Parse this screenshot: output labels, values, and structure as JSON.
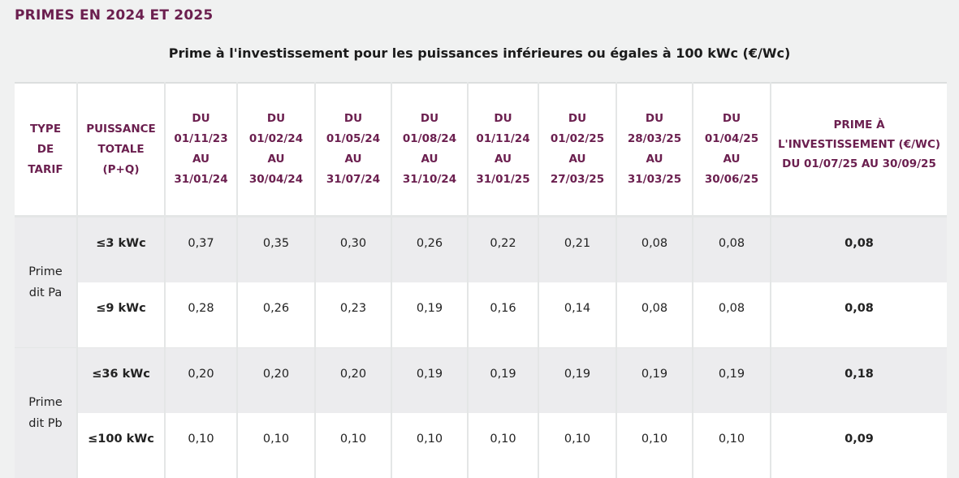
{
  "heading": "PRIMES EN 2024 ET 2025",
  "caption": "Prime à l'investissement pour les puissances inférieures ou égales à 100 kWc (€/Wc)",
  "columns": [
    [
      "TYPE",
      "DE",
      "TARIF"
    ],
    [
      "PUISSANCE",
      "TOTALE",
      "(P+Q)"
    ],
    [
      "DU",
      "01/11/23",
      "AU",
      "31/01/24"
    ],
    [
      "DU",
      "01/02/24",
      "AU",
      "30/04/24"
    ],
    [
      "DU",
      "01/05/24",
      "AU",
      "31/07/24"
    ],
    [
      "DU",
      "01/08/24",
      "AU",
      "31/10/24"
    ],
    [
      "DU",
      "01/11/24",
      "AU",
      "31/01/25"
    ],
    [
      "DU",
      "01/02/25",
      "AU",
      "27/03/25"
    ],
    [
      "DU",
      "28/03/25",
      "AU",
      "31/03/25"
    ],
    [
      "DU",
      "01/04/25",
      "AU",
      "30/06/25"
    ],
    [
      "PRIME À",
      "L'INVESTISSEMENT (€/WC)",
      "DU 01/07/25 AU 30/09/25"
    ]
  ],
  "groups": [
    {
      "type": [
        "Prime",
        "dit Pa"
      ],
      "rows": [
        {
          "power": "≤3 kWc",
          "values": [
            "0,37",
            "0,35",
            "0,30",
            "0,26",
            "0,22",
            "0,21",
            "0,08",
            "0,08"
          ],
          "final": "0,08"
        },
        {
          "power": "≤9 kWc",
          "values": [
            "0,28",
            "0,26",
            "0,23",
            "0,19",
            "0,16",
            "0,14",
            "0,08",
            "0,08"
          ],
          "final": "0,08"
        }
      ]
    },
    {
      "type": [
        "Prime",
        "dit Pb"
      ],
      "rows": [
        {
          "power": "≤36 kWc",
          "values": [
            "0,20",
            "0,20",
            "0,20",
            "0,19",
            "0,19",
            "0,19",
            "0,19",
            "0,19"
          ],
          "final": "0,18"
        },
        {
          "power": "≤100 kWc",
          "values": [
            "0,10",
            "0,10",
            "0,10",
            "0,10",
            "0,10",
            "0,10",
            "0,10",
            "0,10"
          ],
          "final": "0,09"
        }
      ]
    }
  ],
  "colors": {
    "accent": "#6b1f4f",
    "row_shade": "#ececee",
    "background": "#f0f1f1"
  }
}
